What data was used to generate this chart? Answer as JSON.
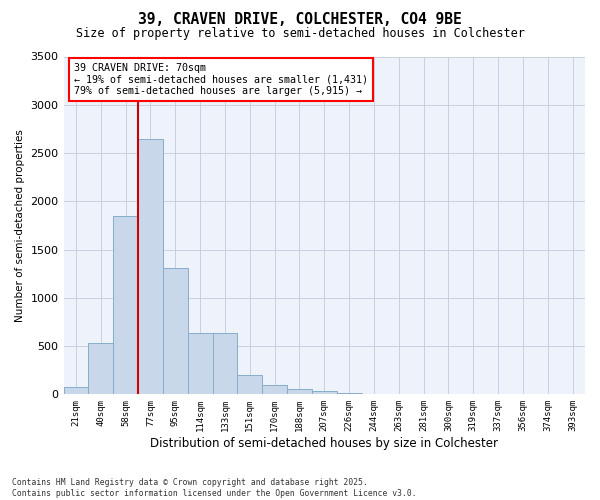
{
  "title1": "39, CRAVEN DRIVE, COLCHESTER, CO4 9BE",
  "title2": "Size of property relative to semi-detached houses in Colchester",
  "xlabel": "Distribution of semi-detached houses by size in Colchester",
  "ylabel": "Number of semi-detached properties",
  "footnote": "Contains HM Land Registry data © Crown copyright and database right 2025.\nContains public sector information licensed under the Open Government Licence v3.0.",
  "bar_labels": [
    "21sqm",
    "40sqm",
    "58sqm",
    "77sqm",
    "95sqm",
    "114sqm",
    "133sqm",
    "151sqm",
    "170sqm",
    "188sqm",
    "207sqm",
    "226sqm",
    "244sqm",
    "263sqm",
    "281sqm",
    "300sqm",
    "319sqm",
    "337sqm",
    "356sqm",
    "374sqm",
    "393sqm"
  ],
  "bar_values": [
    75,
    530,
    1850,
    2650,
    1310,
    640,
    640,
    200,
    100,
    55,
    30,
    10,
    5,
    2,
    1,
    0,
    0,
    0,
    0,
    0,
    0
  ],
  "bar_color": "#c8d8ea",
  "bar_edgecolor": "#85aecb",
  "ylim": [
    0,
    3500
  ],
  "yticks": [
    0,
    500,
    1000,
    1500,
    2000,
    2500,
    3000,
    3500
  ],
  "vline_x": 2.5,
  "vline_color": "#cc0000",
  "annotation_title": "39 CRAVEN DRIVE: 70sqm",
  "annotation_line1": "← 19% of semi-detached houses are smaller (1,431)",
  "annotation_line2": "79% of semi-detached houses are larger (5,915) →",
  "bg_color": "#eef2fb",
  "grid_color": "#c8d0e0"
}
